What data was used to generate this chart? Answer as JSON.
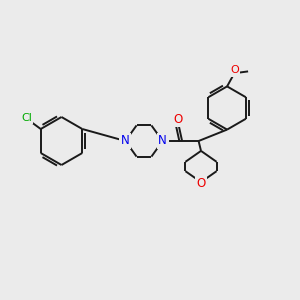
{
  "background_color": "#ebebeb",
  "bond_color": "#1a1a1a",
  "atom_colors": {
    "N": "#0000ee",
    "O": "#ee0000",
    "Cl": "#00aa00"
  },
  "lw": 1.4,
  "fig_width": 3.0,
  "fig_height": 3.0,
  "dpi": 100,
  "xlim": [
    0,
    10
  ],
  "ylim": [
    0,
    10
  ]
}
